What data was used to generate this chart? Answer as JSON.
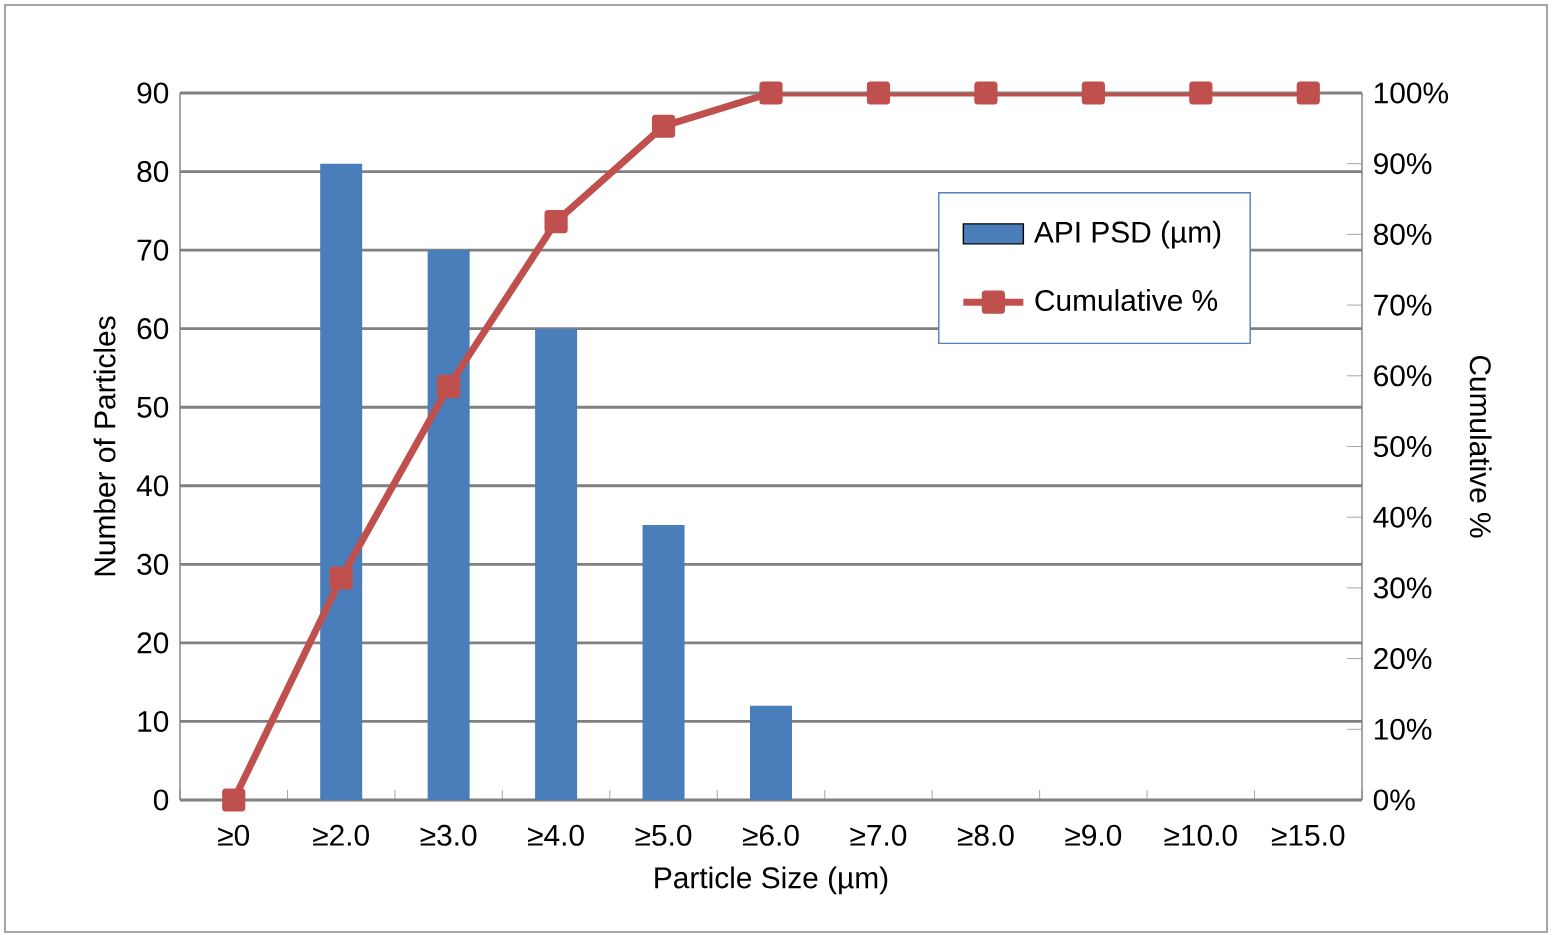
{
  "chart_data": {
    "type": "bar",
    "xlabel": "Particle Size (µm)",
    "ylabel": "Number of Particles",
    "y2label": "Cumulative %",
    "categories": [
      "≥0",
      "≥2.0",
      "≥3.0",
      "≥4.0",
      "≥5.0",
      "≥6.0",
      "≥7.0",
      "≥8.0",
      "≥9.0",
      "≥10.0",
      "≥15.0"
    ],
    "series": [
      {
        "name": "API PSD (µm)",
        "color": "#4a7ebb",
        "values": [
          0,
          81,
          70,
          60,
          35,
          12,
          0,
          0,
          0,
          0,
          0
        ]
      },
      {
        "name": "Cumulative %",
        "type": "line",
        "axis": "y2",
        "marker": "square",
        "color": "#c0504d",
        "values": [
          0,
          31.4,
          58.5,
          81.8,
          95.3,
          100,
          100,
          100,
          100,
          100,
          100
        ]
      }
    ],
    "ylim": [
      0,
      90
    ],
    "yticks": [
      0,
      10,
      20,
      30,
      40,
      50,
      60,
      70,
      80,
      90
    ],
    "y2lim": [
      0,
      100
    ],
    "y2ticks": [
      {
        "value": 0,
        "label": "0%"
      },
      {
        "value": 10,
        "label": "10%"
      },
      {
        "value": 20,
        "label": "20%"
      },
      {
        "value": 30,
        "label": "30%"
      },
      {
        "value": 40,
        "label": "40%"
      },
      {
        "value": 50,
        "label": "50%"
      },
      {
        "value": 60,
        "label": "60%"
      },
      {
        "value": 70,
        "label": "70%"
      },
      {
        "value": 80,
        "label": "80%"
      },
      {
        "value": 90,
        "label": "90%"
      },
      {
        "value": 100,
        "label": "100%"
      }
    ],
    "grid": "y",
    "legend": "top right"
  }
}
